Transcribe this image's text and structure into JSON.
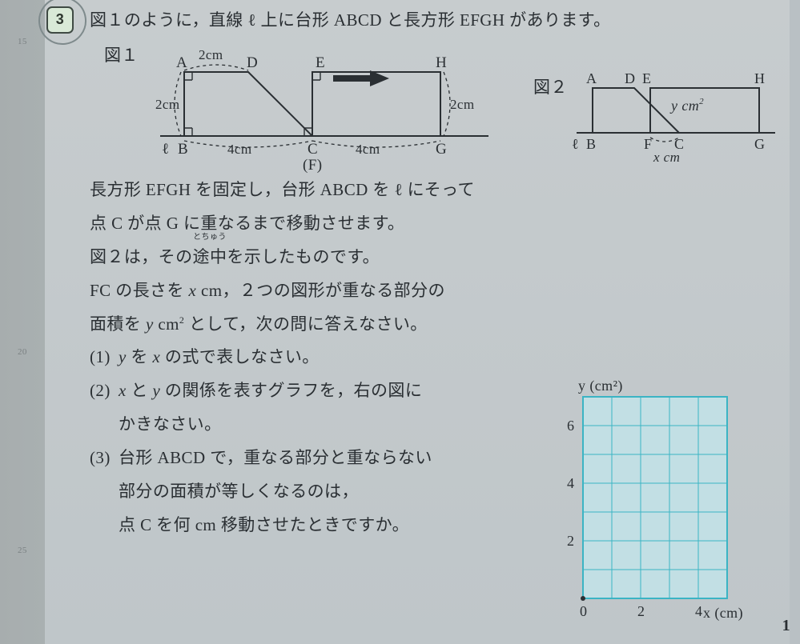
{
  "gutter_ticks": [
    {
      "y": 42,
      "t": "15"
    },
    {
      "y": 430,
      "t": "20"
    },
    {
      "y": 678,
      "t": "25"
    }
  ],
  "question_number": "3",
  "lead": "図１のように，直線 ℓ 上に台形 ABCD と長方形 EFGH があります。",
  "fig1_label": "図１",
  "fig2_label": "図２",
  "fig1": {
    "labels": {
      "A": "A",
      "D": "D",
      "E": "E",
      "H": "H",
      "B": "B",
      "C": "C",
      "G": "G",
      "F": "(F)",
      "ell": "ℓ",
      "ad": "2cm",
      "ab": "2cm",
      "bc": "4cm",
      "cg": "4cm",
      "hg": "2cm"
    },
    "stroke": "#2a2f33"
  },
  "fig2": {
    "labels": {
      "A": "A",
      "D": "D",
      "E": "E",
      "H": "H",
      "B": "B",
      "C": "C",
      "G": "G",
      "F": "F",
      "ell": "ℓ",
      "y": "y cm",
      "x": "x cm"
    },
    "sup": "2",
    "stroke": "#2a2f33"
  },
  "body": [
    "長方形 EFGH を固定し，台形 ABCD を ℓ にそって",
    "点 C が点 G に重なるまで移動させます。",
    "図２は，その|途中|とちゅう|を示したものです。",
    "FC の長さを <i>x</i> cm，２つの図形が重なる部分の",
    "面積を <i>y</i> cm<sup>2</sup> として，次の問に答えなさい。"
  ],
  "subs": [
    {
      "n": "(1)",
      "t": "<i>y</i> を <i>x</i> の式で表しなさい。"
    },
    {
      "n": "(2)",
      "t": "<i>x</i> と <i>y</i> の関係を表すグラフを，右の図に"
    },
    {
      "n": "",
      "t": "かきなさい。"
    },
    {
      "n": "(3)",
      "t": "台形 ABCD で，重なる部分と重ならない"
    },
    {
      "n": "",
      "t": "部分の面積が等しくなるのは，"
    },
    {
      "n": "",
      "t": "点 C を何 cm 移動させたときですか。"
    }
  ],
  "grid": {
    "border": "#3bb4c4",
    "grid": "#3bb4c4",
    "bg": "#c2dfe4",
    "cell": 36,
    "cols": 5,
    "rows": 7,
    "xlabel": "x (cm)",
    "ylabel": "y (cm²)",
    "xticks": [
      {
        "v": 0,
        "t": "0"
      },
      {
        "v": 2,
        "t": "2"
      },
      {
        "v": 4,
        "t": "4"
      }
    ],
    "yticks": [
      {
        "v": 2,
        "t": "2"
      },
      {
        "v": 4,
        "t": "4"
      },
      {
        "v": 6,
        "t": "6"
      }
    ]
  },
  "page_number": "1"
}
